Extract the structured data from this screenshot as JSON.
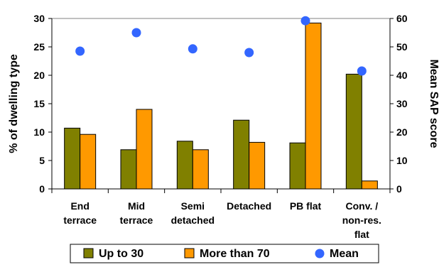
{
  "chart_data": {
    "type": "bar",
    "categories": [
      [
        "End",
        "terrace"
      ],
      [
        "Mid",
        "terrace"
      ],
      [
        "Semi",
        "detached"
      ],
      [
        "Detached"
      ],
      [
        "PB flat"
      ],
      [
        "Conv. /",
        "non-res.",
        "flat"
      ]
    ],
    "series": [
      {
        "name": "Up to 30",
        "type": "bar",
        "axis": "left",
        "color": "#808000",
        "values": [
          10.7,
          6.9,
          8.4,
          12.1,
          8.1,
          20.2
        ]
      },
      {
        "name": "More than 70",
        "type": "bar",
        "axis": "left",
        "color": "#FF9900",
        "values": [
          9.6,
          14.0,
          6.9,
          8.2,
          29.2,
          1.4
        ]
      },
      {
        "name": "Mean",
        "type": "scatter",
        "axis": "right",
        "color": "#3366FF",
        "values": [
          48.5,
          55.0,
          49.3,
          48.0,
          59.2,
          41.5
        ]
      }
    ],
    "ylabel": "% of dwelling type",
    "ylim": [
      0,
      30
    ],
    "yticks": [
      "0",
      "5",
      "10",
      "15",
      "20",
      "25",
      "30"
    ],
    "y2label": "Mean SAP score",
    "y2lim": [
      0,
      60
    ],
    "y2ticks": [
      "0",
      "10",
      "20",
      "30",
      "40",
      "50",
      "60"
    ],
    "legend": "bottom",
    "grid": false
  }
}
